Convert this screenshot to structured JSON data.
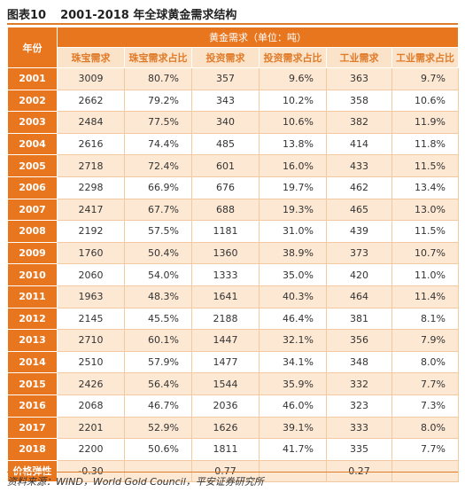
{
  "title": {
    "label": "图表10",
    "text": "2001-2018 年全球黄金需求结构"
  },
  "table": {
    "year_header": "年份",
    "group_header": "黄金需求（单位：吨）",
    "columns": [
      "珠宝需求",
      "珠宝需求占比",
      "投资需求",
      "投资需求占比",
      "工业需求",
      "工业需求占比"
    ],
    "rows": [
      {
        "year": "2001",
        "cells": [
          "3009",
          "80.7%",
          "357",
          "9.6%",
          "363",
          "9.7%"
        ]
      },
      {
        "year": "2002",
        "cells": [
          "2662",
          "79.2%",
          "343",
          "10.2%",
          "358",
          "10.6%"
        ]
      },
      {
        "year": "2003",
        "cells": [
          "2484",
          "77.5%",
          "340",
          "10.6%",
          "382",
          "11.9%"
        ]
      },
      {
        "year": "2004",
        "cells": [
          "2616",
          "74.4%",
          "485",
          "13.8%",
          "414",
          "11.8%"
        ]
      },
      {
        "year": "2005",
        "cells": [
          "2718",
          "72.4%",
          "601",
          "16.0%",
          "433",
          "11.5%"
        ]
      },
      {
        "year": "2006",
        "cells": [
          "2298",
          "66.9%",
          "676",
          "19.7%",
          "462",
          "13.4%"
        ]
      },
      {
        "year": "2007",
        "cells": [
          "2417",
          "67.7%",
          "688",
          "19.3%",
          "465",
          "13.0%"
        ]
      },
      {
        "year": "2008",
        "cells": [
          "2192",
          "57.5%",
          "1181",
          "31.0%",
          "439",
          "11.5%"
        ]
      },
      {
        "year": "2009",
        "cells": [
          "1760",
          "50.4%",
          "1360",
          "38.9%",
          "373",
          "10.7%"
        ]
      },
      {
        "year": "2010",
        "cells": [
          "2060",
          "54.0%",
          "1333",
          "35.0%",
          "420",
          "11.0%"
        ]
      },
      {
        "year": "2011",
        "cells": [
          "1963",
          "48.3%",
          "1641",
          "40.3%",
          "464",
          "11.4%"
        ]
      },
      {
        "year": "2012",
        "cells": [
          "2145",
          "45.5%",
          "2188",
          "46.4%",
          "381",
          "8.1%"
        ]
      },
      {
        "year": "2013",
        "cells": [
          "2710",
          "60.1%",
          "1447",
          "32.1%",
          "356",
          "7.9%"
        ]
      },
      {
        "year": "2014",
        "cells": [
          "2510",
          "57.9%",
          "1477",
          "34.1%",
          "348",
          "8.0%"
        ]
      },
      {
        "year": "2015",
        "cells": [
          "2426",
          "56.4%",
          "1544",
          "35.9%",
          "332",
          "7.7%"
        ]
      },
      {
        "year": "2016",
        "cells": [
          "2068",
          "46.7%",
          "2036",
          "46.0%",
          "323",
          "7.3%"
        ]
      },
      {
        "year": "2017",
        "cells": [
          "2201",
          "52.9%",
          "1626",
          "39.1%",
          "333",
          "8.0%"
        ]
      },
      {
        "year": "2018",
        "cells": [
          "2200",
          "50.6%",
          "1811",
          "41.7%",
          "335",
          "7.7%"
        ]
      }
    ],
    "elasticity": {
      "label": "价格弹性",
      "cells": [
        "-0.30",
        "",
        "0.77",
        "",
        "0.27",
        ""
      ]
    }
  },
  "source": "资料来源：WIND，World Gold Council，平安证券研究所"
}
